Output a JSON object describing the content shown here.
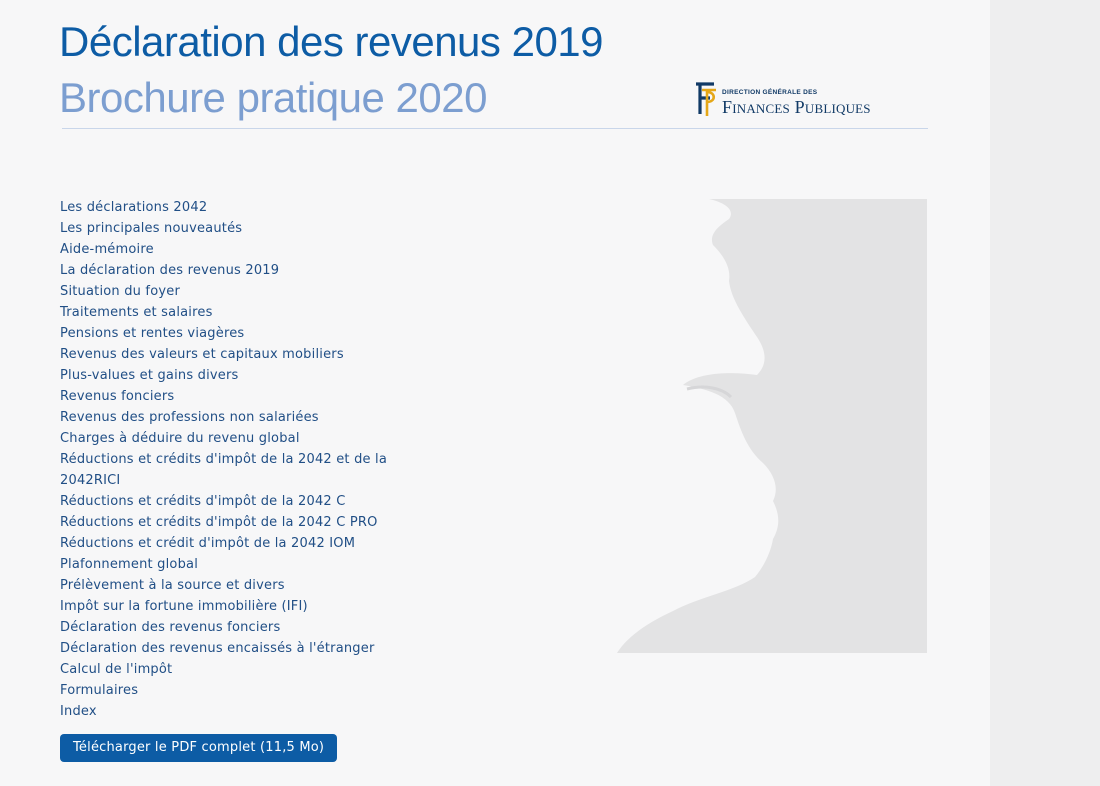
{
  "header": {
    "title": "Déclaration des revenus 2019",
    "subtitle": "Brochure pratique 2020"
  },
  "logo": {
    "line1": "DIRECTION GÉNÉRALE DES",
    "line2": "Finances Publiques",
    "colors": {
      "navy": "#113a66",
      "gold": "#e5a718"
    }
  },
  "toc": {
    "items": [
      "Les déclarations 2042",
      "Les principales nouveautés",
      "Aide-mémoire",
      "La déclaration des revenus 2019",
      "Situation du foyer",
      "Traitements et salaires",
      "Pensions et rentes viagères",
      "Revenus des valeurs et capitaux mobiliers",
      "Plus-values et gains divers",
      "Revenus fonciers",
      "Revenus des professions non salariées",
      "Charges à déduire du revenu global",
      "Réductions et crédits d'impôt de la 2042 et de la 2042RICI",
      "Réductions et crédits d'impôt de la 2042 C",
      "Réductions et crédits d'impôt de la 2042 C PRO",
      "Réductions et crédit d'impôt de la 2042 IOM",
      "Plafonnement global",
      "Prélèvement à la source et divers",
      "Impôt sur la fortune immobilière (IFI)",
      "Déclaration des revenus fonciers",
      "Déclaration des revenus encaissés à l'étranger",
      "Calcul de l'impôt",
      "Formulaires",
      "Index"
    ]
  },
  "download": {
    "label": "Télécharger le PDF complet (11,5 Mo)"
  },
  "colors": {
    "title": "#0d5ca5",
    "subtitle": "#7c9ed0",
    "link": "#214f86",
    "button": "#0d5ca5"
  }
}
